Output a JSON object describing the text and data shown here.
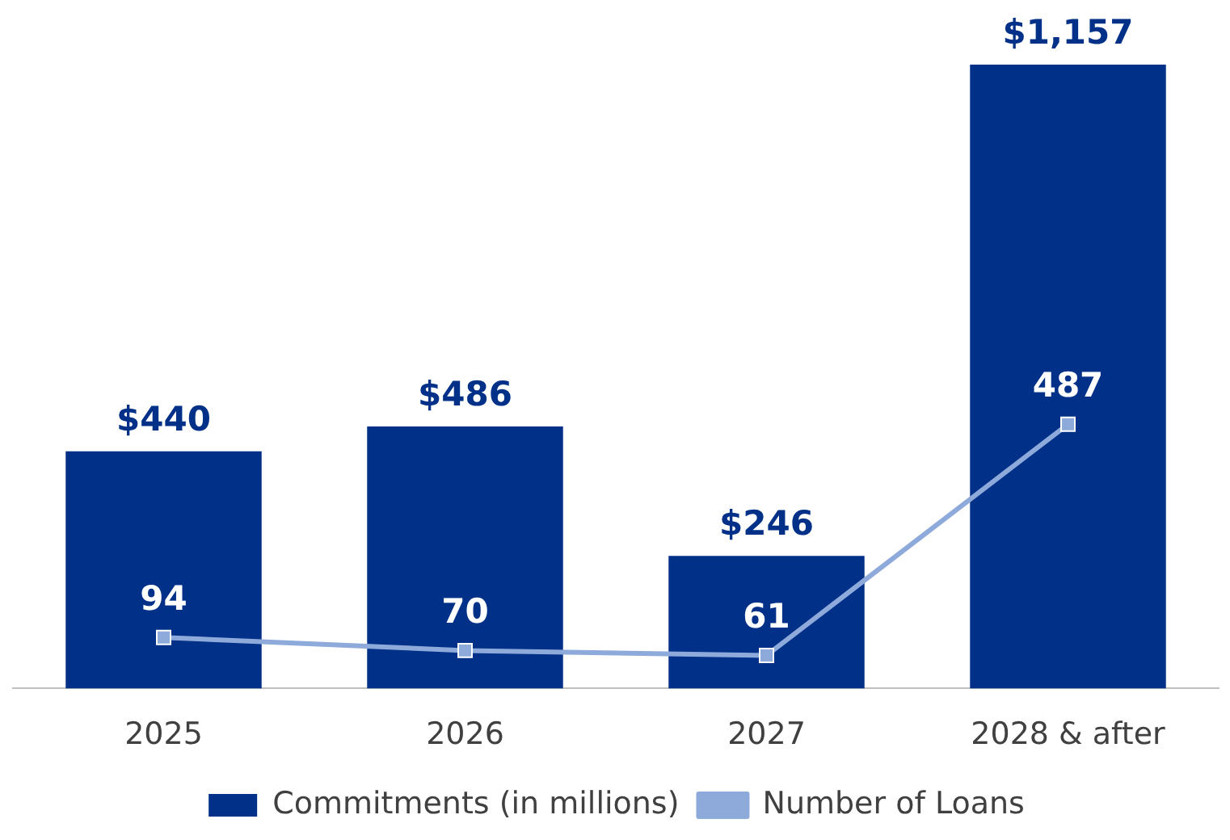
{
  "chart_data": {
    "type": "bar",
    "categories": [
      "2025",
      "2026",
      "2027",
      "2028 & after"
    ],
    "series": [
      {
        "name": "Commitments (in millions)",
        "color": "#003087",
        "values": [
          440,
          486,
          246,
          1157
        ],
        "value_labels": [
          "$440",
          "$486",
          "$246",
          "$1,157"
        ]
      },
      {
        "name": "Number of Loans",
        "type": "line",
        "axis": "y2",
        "color": "#8eaadb",
        "values": [
          94,
          70,
          61,
          487
        ]
      }
    ],
    "ylim": [
      0,
      1157
    ],
    "y2lim": [
      0,
      1150
    ],
    "tick_labels": "x",
    "grid": false,
    "legend": "bottom",
    "marker": "square",
    "data_labels": true
  }
}
